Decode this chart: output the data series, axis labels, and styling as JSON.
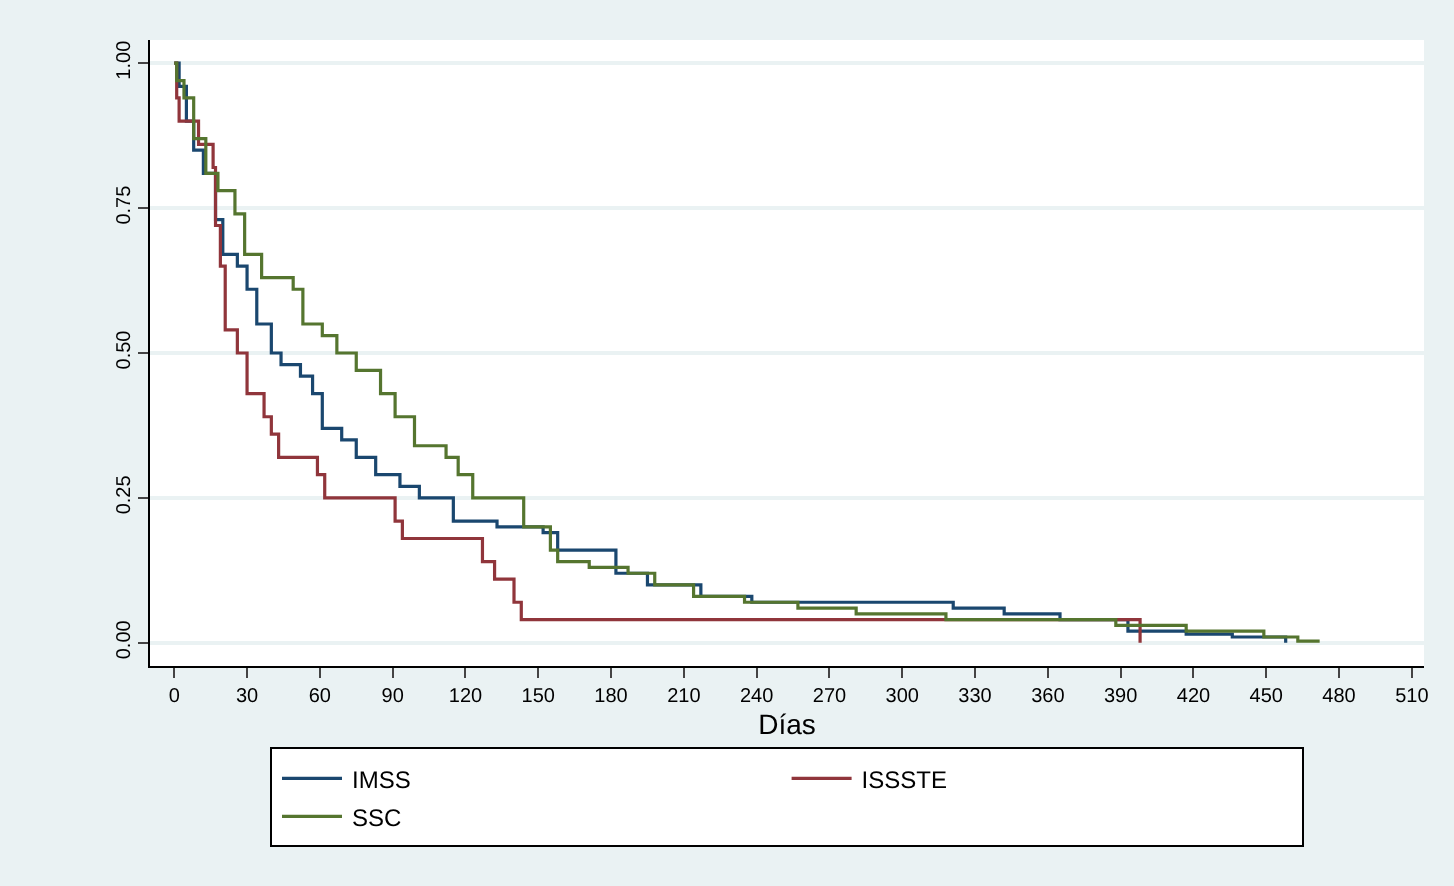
{
  "chart_data": {
    "type": "step",
    "xlabel": "Días",
    "xlim": [
      -10,
      515
    ],
    "xticks": [
      0,
      30,
      60,
      90,
      120,
      150,
      180,
      210,
      240,
      270,
      300,
      330,
      360,
      390,
      420,
      450,
      480,
      510
    ],
    "ylim": [
      -0.04,
      1.04
    ],
    "yticks": [
      {
        "value": 0,
        "label": "0.00"
      },
      {
        "value": 0.25,
        "label": "0.25"
      },
      {
        "value": 0.5,
        "label": "0.50"
      },
      {
        "value": 0.75,
        "label": "0.75"
      },
      {
        "value": 1,
        "label": "1.00"
      }
    ],
    "grid": "y",
    "legend": "bottom",
    "marker": "none",
    "line_style": "solid",
    "series": [
      {
        "name": "IMSS",
        "color": "#1a476f",
        "x": [
          0,
          2,
          5,
          8,
          12,
          17,
          20,
          26,
          30,
          34,
          40,
          44,
          52,
          57,
          61,
          69,
          75,
          83,
          93,
          101,
          115,
          133,
          152,
          158,
          182,
          195,
          217,
          238,
          321,
          342,
          365,
          393,
          417,
          436,
          458
        ],
        "values": [
          1.0,
          0.96,
          0.9,
          0.85,
          0.81,
          0.73,
          0.67,
          0.65,
          0.61,
          0.55,
          0.5,
          0.48,
          0.46,
          0.43,
          0.37,
          0.35,
          0.32,
          0.29,
          0.27,
          0.25,
          0.21,
          0.2,
          0.19,
          0.16,
          0.12,
          0.1,
          0.08,
          0.07,
          0.06,
          0.05,
          0.04,
          0.02,
          0.015,
          0.01,
          0.0
        ]
      },
      {
        "name": "ISSSTE",
        "color": "#90353b",
        "x": [
          0,
          1,
          2,
          10,
          16,
          17,
          19,
          21,
          26,
          30,
          37,
          40,
          43,
          59,
          62,
          91,
          94,
          127,
          132,
          140,
          143,
          398
        ],
        "values": [
          1.0,
          0.94,
          0.9,
          0.86,
          0.82,
          0.72,
          0.65,
          0.54,
          0.5,
          0.43,
          0.39,
          0.36,
          0.32,
          0.29,
          0.25,
          0.21,
          0.18,
          0.14,
          0.11,
          0.07,
          0.04,
          0.0
        ]
      },
      {
        "name": "SSC",
        "color": "#55752f",
        "x": [
          0,
          1,
          4,
          8,
          13,
          18,
          25,
          29,
          36,
          49,
          53,
          61,
          67,
          75,
          85,
          91,
          99,
          112,
          117,
          123,
          133,
          144,
          155,
          158,
          171,
          187,
          198,
          214,
          235,
          257,
          281,
          318,
          388,
          417,
          449,
          463,
          472
        ],
        "values": [
          1.0,
          0.97,
          0.94,
          0.87,
          0.81,
          0.78,
          0.74,
          0.67,
          0.63,
          0.61,
          0.55,
          0.53,
          0.5,
          0.47,
          0.43,
          0.39,
          0.34,
          0.32,
          0.29,
          0.25,
          0.25,
          0.2,
          0.16,
          0.14,
          0.13,
          0.12,
          0.1,
          0.08,
          0.07,
          0.06,
          0.05,
          0.04,
          0.03,
          0.02,
          0.01,
          0.003,
          0.003
        ]
      }
    ]
  }
}
